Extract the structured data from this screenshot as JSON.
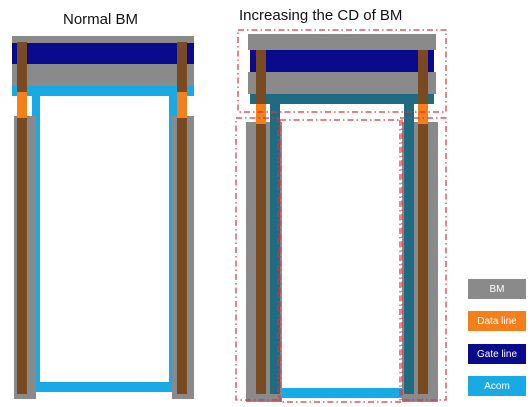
{
  "titles": {
    "left": "Normal BM",
    "right": "Increasing the CD of BM"
  },
  "colors": {
    "bm": "#8a8a8a",
    "data_line": "#f57f1a",
    "gate_line": "#0a0a8c",
    "acom": "#18aae4",
    "brown": "#7a4a22",
    "teal": "#1f6b82",
    "dash": "#e0303a"
  },
  "legend": [
    {
      "key": "bm",
      "label": "BM",
      "color": "#8a8a8a"
    },
    {
      "key": "data_line",
      "label": "Data line",
      "color": "#f57f1a"
    },
    {
      "key": "gate_line",
      "label": "Gate line",
      "color": "#0a0a8c"
    },
    {
      "key": "acom",
      "label": "Acom",
      "color": "#18aae4"
    }
  ]
}
